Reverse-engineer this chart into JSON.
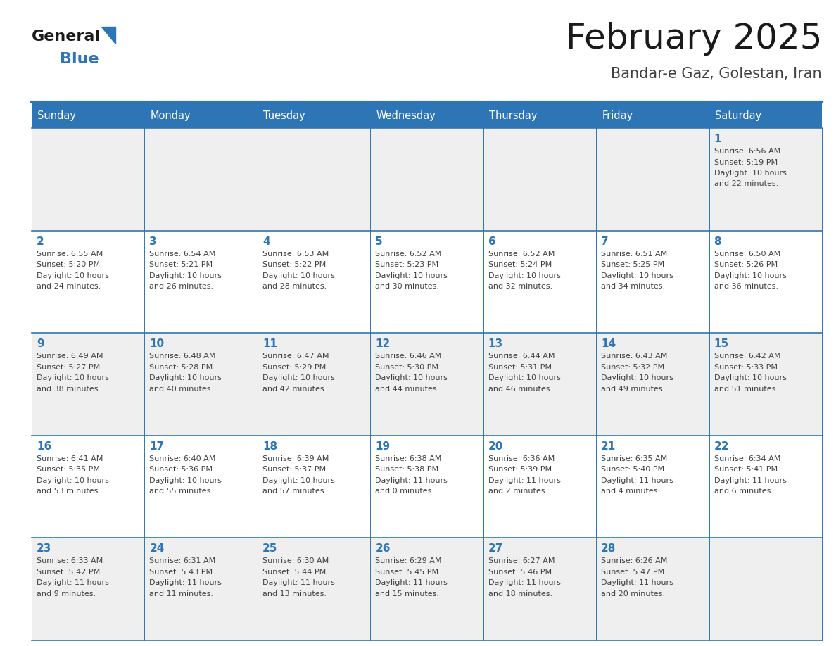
{
  "title": "February 2025",
  "subtitle": "Bandar-e Gaz, Golestan, Iran",
  "days_of_week": [
    "Sunday",
    "Monday",
    "Tuesday",
    "Wednesday",
    "Thursday",
    "Friday",
    "Saturday"
  ],
  "header_bg": "#2E75B6",
  "header_text": "#FFFFFF",
  "cell_bg_odd": "#EFEFEF",
  "cell_bg_even": "#FFFFFF",
  "grid_line": "#2E75B6",
  "day_number_color": "#2E75B6",
  "info_text_color": "#404040",
  "logo_general_color": "#1a1a1a",
  "logo_blue_color": "#2E75B6",
  "weeks": [
    [
      {
        "day": null,
        "info": ""
      },
      {
        "day": null,
        "info": ""
      },
      {
        "day": null,
        "info": ""
      },
      {
        "day": null,
        "info": ""
      },
      {
        "day": null,
        "info": ""
      },
      {
        "day": null,
        "info": ""
      },
      {
        "day": 1,
        "info": "Sunrise: 6:56 AM\nSunset: 5:19 PM\nDaylight: 10 hours\nand 22 minutes."
      }
    ],
    [
      {
        "day": 2,
        "info": "Sunrise: 6:55 AM\nSunset: 5:20 PM\nDaylight: 10 hours\nand 24 minutes."
      },
      {
        "day": 3,
        "info": "Sunrise: 6:54 AM\nSunset: 5:21 PM\nDaylight: 10 hours\nand 26 minutes."
      },
      {
        "day": 4,
        "info": "Sunrise: 6:53 AM\nSunset: 5:22 PM\nDaylight: 10 hours\nand 28 minutes."
      },
      {
        "day": 5,
        "info": "Sunrise: 6:52 AM\nSunset: 5:23 PM\nDaylight: 10 hours\nand 30 minutes."
      },
      {
        "day": 6,
        "info": "Sunrise: 6:52 AM\nSunset: 5:24 PM\nDaylight: 10 hours\nand 32 minutes."
      },
      {
        "day": 7,
        "info": "Sunrise: 6:51 AM\nSunset: 5:25 PM\nDaylight: 10 hours\nand 34 minutes."
      },
      {
        "day": 8,
        "info": "Sunrise: 6:50 AM\nSunset: 5:26 PM\nDaylight: 10 hours\nand 36 minutes."
      }
    ],
    [
      {
        "day": 9,
        "info": "Sunrise: 6:49 AM\nSunset: 5:27 PM\nDaylight: 10 hours\nand 38 minutes."
      },
      {
        "day": 10,
        "info": "Sunrise: 6:48 AM\nSunset: 5:28 PM\nDaylight: 10 hours\nand 40 minutes."
      },
      {
        "day": 11,
        "info": "Sunrise: 6:47 AM\nSunset: 5:29 PM\nDaylight: 10 hours\nand 42 minutes."
      },
      {
        "day": 12,
        "info": "Sunrise: 6:46 AM\nSunset: 5:30 PM\nDaylight: 10 hours\nand 44 minutes."
      },
      {
        "day": 13,
        "info": "Sunrise: 6:44 AM\nSunset: 5:31 PM\nDaylight: 10 hours\nand 46 minutes."
      },
      {
        "day": 14,
        "info": "Sunrise: 6:43 AM\nSunset: 5:32 PM\nDaylight: 10 hours\nand 49 minutes."
      },
      {
        "day": 15,
        "info": "Sunrise: 6:42 AM\nSunset: 5:33 PM\nDaylight: 10 hours\nand 51 minutes."
      }
    ],
    [
      {
        "day": 16,
        "info": "Sunrise: 6:41 AM\nSunset: 5:35 PM\nDaylight: 10 hours\nand 53 minutes."
      },
      {
        "day": 17,
        "info": "Sunrise: 6:40 AM\nSunset: 5:36 PM\nDaylight: 10 hours\nand 55 minutes."
      },
      {
        "day": 18,
        "info": "Sunrise: 6:39 AM\nSunset: 5:37 PM\nDaylight: 10 hours\nand 57 minutes."
      },
      {
        "day": 19,
        "info": "Sunrise: 6:38 AM\nSunset: 5:38 PM\nDaylight: 11 hours\nand 0 minutes."
      },
      {
        "day": 20,
        "info": "Sunrise: 6:36 AM\nSunset: 5:39 PM\nDaylight: 11 hours\nand 2 minutes."
      },
      {
        "day": 21,
        "info": "Sunrise: 6:35 AM\nSunset: 5:40 PM\nDaylight: 11 hours\nand 4 minutes."
      },
      {
        "day": 22,
        "info": "Sunrise: 6:34 AM\nSunset: 5:41 PM\nDaylight: 11 hours\nand 6 minutes."
      }
    ],
    [
      {
        "day": 23,
        "info": "Sunrise: 6:33 AM\nSunset: 5:42 PM\nDaylight: 11 hours\nand 9 minutes."
      },
      {
        "day": 24,
        "info": "Sunrise: 6:31 AM\nSunset: 5:43 PM\nDaylight: 11 hours\nand 11 minutes."
      },
      {
        "day": 25,
        "info": "Sunrise: 6:30 AM\nSunset: 5:44 PM\nDaylight: 11 hours\nand 13 minutes."
      },
      {
        "day": 26,
        "info": "Sunrise: 6:29 AM\nSunset: 5:45 PM\nDaylight: 11 hours\nand 15 minutes."
      },
      {
        "day": 27,
        "info": "Sunrise: 6:27 AM\nSunset: 5:46 PM\nDaylight: 11 hours\nand 18 minutes."
      },
      {
        "day": 28,
        "info": "Sunrise: 6:26 AM\nSunset: 5:47 PM\nDaylight: 11 hours\nand 20 minutes."
      },
      {
        "day": null,
        "info": ""
      }
    ]
  ]
}
